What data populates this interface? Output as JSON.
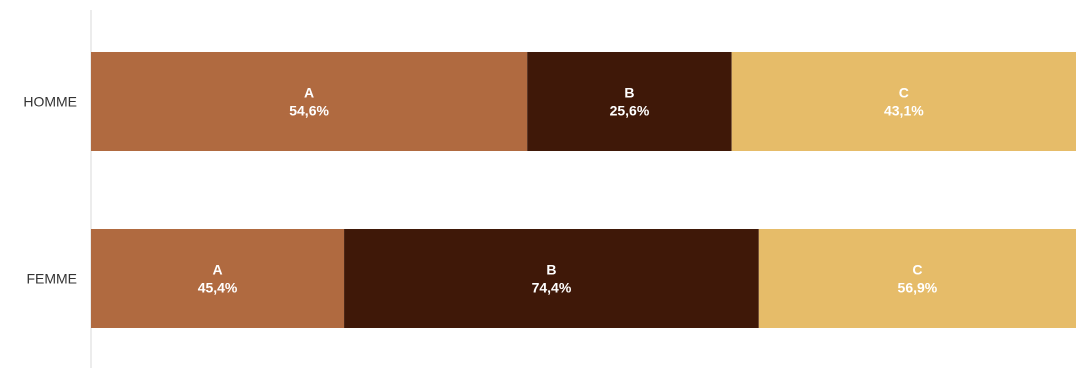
{
  "chart_data": {
    "type": "bar",
    "orientation": "horizontal",
    "stacked": true,
    "categories": [
      "HOMME",
      "FEMME"
    ],
    "series": [
      {
        "name": "A",
        "values": [
          "54,6%",
          "45,4%"
        ],
        "numeric": [
          54.6,
          45.4
        ],
        "color": "#b06a40",
        "label_color": "#ffffff"
      },
      {
        "name": "B",
        "values": [
          "25,6%",
          "74,4%"
        ],
        "numeric": [
          25.6,
          74.4
        ],
        "color": "#3f1808",
        "label_color": "#ffffff"
      },
      {
        "name": "C",
        "values": [
          "43,1%",
          "56,9%"
        ],
        "numeric": [
          43.1,
          56.9
        ],
        "color": "#e6bc69",
        "label_color": "#ffffff"
      }
    ],
    "title": "",
    "xlabel": "",
    "ylabel": "",
    "grid": false,
    "legend": "none",
    "axis_line_color": "#d9d9d9"
  }
}
